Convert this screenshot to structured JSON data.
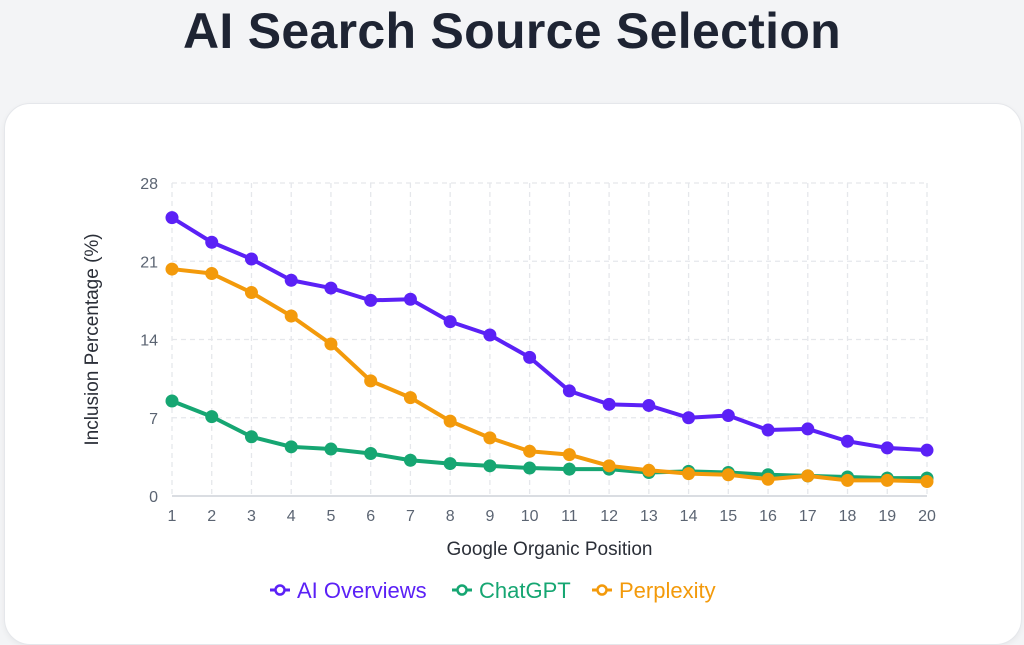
{
  "page": {
    "title": "AI Search Source Selection"
  },
  "colors": {
    "ai_overviews": "#5b21f6",
    "chatgpt": "#16a672",
    "perplexity": "#f39a0b",
    "grid": "#e5e7eb"
  },
  "chart_data": {
    "type": "line",
    "title": "AI Search Source Selection",
    "xlabel": "Google Organic Position",
    "ylabel": "Inclusion Percentage (%)",
    "x": [
      1,
      2,
      3,
      4,
      5,
      6,
      7,
      8,
      9,
      10,
      11,
      12,
      13,
      14,
      15,
      16,
      17,
      18,
      19,
      20
    ],
    "ylim": [
      0,
      28
    ],
    "yticks": [
      0,
      7,
      14,
      21,
      28
    ],
    "grid": true,
    "legend_position": "bottom",
    "series": [
      {
        "name": "AI Overviews",
        "color": "#5b21f6",
        "values": [
          24.9,
          22.7,
          21.2,
          19.3,
          18.6,
          17.5,
          17.6,
          15.6,
          14.4,
          12.4,
          9.4,
          8.2,
          8.1,
          7.0,
          7.2,
          5.9,
          6.0,
          4.9,
          4.3,
          4.1
        ]
      },
      {
        "name": "ChatGPT",
        "color": "#16a672",
        "values": [
          8.5,
          7.1,
          5.3,
          4.4,
          4.2,
          3.8,
          3.2,
          2.9,
          2.7,
          2.5,
          2.4,
          2.4,
          2.1,
          2.2,
          2.1,
          1.9,
          1.8,
          1.7,
          1.6,
          1.6
        ]
      },
      {
        "name": "Perplexity",
        "color": "#f39a0b",
        "values": [
          20.3,
          19.9,
          18.2,
          16.1,
          13.6,
          10.3,
          8.8,
          6.7,
          5.2,
          4.0,
          3.7,
          2.7,
          2.3,
          2.0,
          1.9,
          1.5,
          1.8,
          1.4,
          1.4,
          1.3
        ]
      }
    ]
  }
}
